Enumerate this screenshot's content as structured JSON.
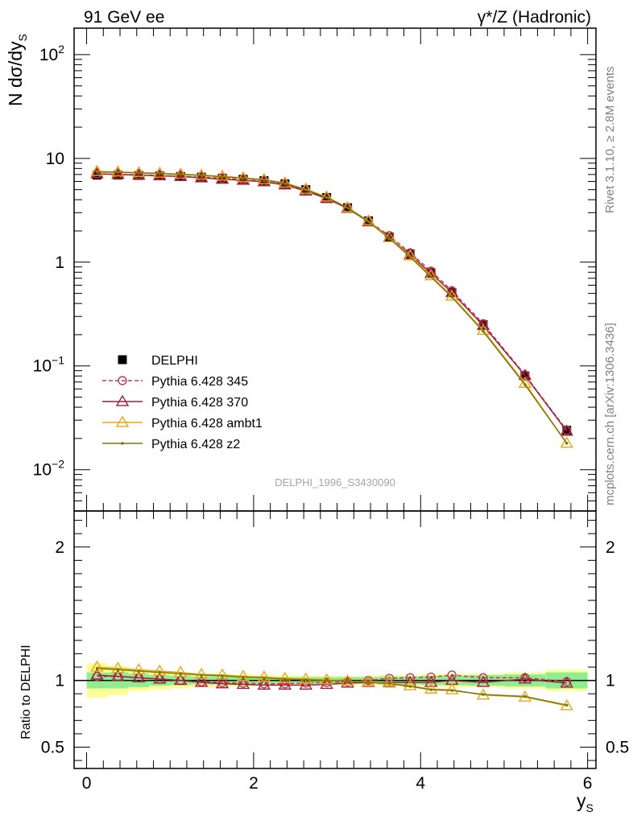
{
  "header": {
    "left": "91 GeV ee",
    "right": "γ*/Z (Hadronic)"
  },
  "side_text": {
    "rivet": "Rivet 3.1.10, ≥ 2.8M events",
    "mcplots": "mcplots.cern.ch [arXiv:1306.3436]"
  },
  "watermark": "DELPHI_1996_S3430090",
  "chart_data": [
    {
      "type": "line",
      "panel": "main",
      "ylabel": "N dσ/dy",
      "ylabel_sub": "S",
      "yscale": "log",
      "ylim": [
        0.004,
        180
      ],
      "y_ticks": [
        {
          "value": 0.01,
          "base": "10",
          "exp": "−2"
        },
        {
          "value": 0.1,
          "base": "10",
          "exp": "−1"
        },
        {
          "value": 1,
          "base": "1",
          "exp": ""
        },
        {
          "value": 10,
          "base": "10",
          "exp": ""
        },
        {
          "value": 100,
          "base": "10",
          "exp": "2"
        }
      ],
      "grid": false,
      "legend_position": "lower-left",
      "x": [
        0.125,
        0.375,
        0.625,
        0.875,
        1.125,
        1.375,
        1.625,
        1.875,
        2.125,
        2.375,
        2.625,
        2.875,
        3.125,
        3.375,
        3.625,
        3.875,
        4.125,
        4.375,
        4.75,
        5.25,
        5.75
      ],
      "series": [
        {
          "name": "DELPHI",
          "color": "#000000",
          "marker": "square",
          "values": [
            6.9,
            6.9,
            6.85,
            6.8,
            6.7,
            6.6,
            6.45,
            6.3,
            6.1,
            5.7,
            5.0,
            4.2,
            3.35,
            2.5,
            1.75,
            1.2,
            0.79,
            0.51,
            0.25,
            0.08,
            0.024
          ]
        },
        {
          "name": "Pythia 6.428 345",
          "color": "#c23b52",
          "marker": "circle-open",
          "dashed": true,
          "values": [
            7.1,
            7.0,
            6.95,
            6.85,
            6.7,
            6.6,
            6.45,
            6.25,
            6.0,
            5.6,
            4.9,
            4.15,
            3.35,
            2.5,
            1.8,
            1.23,
            0.82,
            0.53,
            0.255,
            0.082,
            0.024
          ]
        },
        {
          "name": "Pythia 6.428 370",
          "color": "#a01c3c",
          "marker": "triangle-open",
          "values": [
            7.1,
            7.0,
            6.9,
            6.8,
            6.7,
            6.5,
            6.3,
            6.15,
            5.95,
            5.55,
            4.85,
            4.1,
            3.3,
            2.45,
            1.72,
            1.18,
            0.78,
            0.51,
            0.245,
            0.081,
            0.0235
          ]
        },
        {
          "name": "Pythia 6.428 ambt1",
          "color": "#e7a61a",
          "marker": "triangle-open",
          "values": [
            7.5,
            7.4,
            7.3,
            7.2,
            7.05,
            6.9,
            6.75,
            6.5,
            6.25,
            5.8,
            5.05,
            4.25,
            3.35,
            2.5,
            1.72,
            1.15,
            0.74,
            0.47,
            0.22,
            0.068,
            0.018
          ]
        },
        {
          "name": "Pythia 6.428 z2",
          "color": "#7a7a0a",
          "marker": "dot",
          "values": [
            7.4,
            7.35,
            7.25,
            7.15,
            7.0,
            6.85,
            6.65,
            6.45,
            6.2,
            5.75,
            5.0,
            4.2,
            3.35,
            2.45,
            1.7,
            1.12,
            0.72,
            0.46,
            0.215,
            0.066,
            0.018
          ]
        }
      ]
    },
    {
      "type": "line",
      "panel": "ratio",
      "ylabel": "Ratio to DELPHI",
      "xlabel": "y",
      "xlabel_sub": "S",
      "xlim": [
        -0.15,
        6.1
      ],
      "ylim": [
        0.34,
        2.27
      ],
      "x_ticks": [
        0,
        2,
        4,
        6
      ],
      "y_ticks": [
        0.5,
        1,
        2
      ],
      "grid": false,
      "reference_line": 1,
      "band_inner": [
        0.06,
        0.06,
        0.05,
        0.04,
        0.035,
        0.03,
        0.03,
        0.03,
        0.025,
        0.025,
        0.025,
        0.025,
        0.025,
        0.025,
        0.03,
        0.03,
        0.035,
        0.035,
        0.04,
        0.045,
        0.06
      ],
      "band_outer": [
        0.13,
        0.11,
        0.08,
        0.07,
        0.06,
        0.05,
        0.05,
        0.045,
        0.04,
        0.04,
        0.035,
        0.035,
        0.035,
        0.035,
        0.04,
        0.04,
        0.045,
        0.05,
        0.05,
        0.06,
        0.08
      ],
      "x": [
        0.125,
        0.375,
        0.625,
        0.875,
        1.125,
        1.375,
        1.625,
        1.875,
        2.125,
        2.375,
        2.625,
        2.875,
        3.125,
        3.375,
        3.625,
        3.875,
        4.125,
        4.375,
        4.75,
        5.25,
        5.75
      ],
      "series": [
        {
          "name": "Pythia 6.428 345",
          "color": "#c23b52",
          "marker": "circle-open",
          "dashed": true,
          "values": [
            1.03,
            1.03,
            1.02,
            1.01,
            1.0,
            0.99,
            0.985,
            0.98,
            0.975,
            0.975,
            0.98,
            0.985,
            0.99,
            1.0,
            1.015,
            1.02,
            1.025,
            1.04,
            1.02,
            1.02,
            0.99
          ]
        },
        {
          "name": "Pythia 6.428 370",
          "color": "#a01c3c",
          "marker": "triangle-open",
          "values": [
            1.04,
            1.03,
            1.02,
            1.01,
            1.0,
            0.985,
            0.975,
            0.97,
            0.965,
            0.965,
            0.965,
            0.97,
            0.98,
            0.985,
            0.985,
            0.985,
            0.985,
            1.0,
            0.985,
            1.01,
            0.98
          ]
        },
        {
          "name": "Pythia 6.428 ambt1",
          "color": "#e7a61a",
          "marker": "triangle-open",
          "values": [
            1.1,
            1.09,
            1.08,
            1.07,
            1.06,
            1.045,
            1.04,
            1.03,
            1.025,
            1.015,
            1.01,
            1.005,
            0.995,
            0.99,
            0.98,
            0.96,
            0.935,
            0.93,
            0.89,
            0.875,
            0.81
          ]
        },
        {
          "name": "Pythia 6.428 z2",
          "color": "#7a7a0a",
          "marker": "dot",
          "values": [
            1.09,
            1.08,
            1.07,
            1.06,
            1.05,
            1.04,
            1.035,
            1.025,
            1.02,
            1.01,
            1.005,
            1.0,
            0.995,
            0.985,
            0.975,
            0.955,
            0.93,
            0.925,
            0.895,
            0.88,
            0.815
          ]
        }
      ]
    }
  ]
}
